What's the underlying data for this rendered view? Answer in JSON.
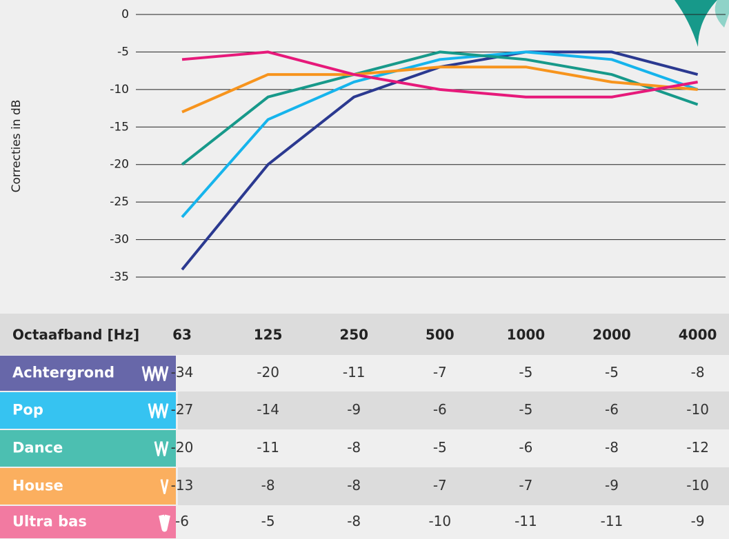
{
  "chart_data": {
    "type": "line",
    "y_label": "Correcties in dB",
    "x_label": "Octaafband [Hz]",
    "categories": [
      "63",
      "125",
      "250",
      "500",
      "1000",
      "2000",
      "4000"
    ],
    "ylim": [
      -35,
      0
    ],
    "yticks": [
      0,
      -5,
      -10,
      -15,
      -20,
      -25,
      -30,
      -35
    ],
    "grid": true,
    "series": [
      {
        "name": "Achtergrond",
        "color": "#2b3990",
        "label_color": "#6767a9",
        "values": [
          -34,
          -20,
          -11,
          -7,
          -5,
          -5,
          -8
        ]
      },
      {
        "name": "Pop",
        "color": "#16b4ec",
        "label_color": "#36c3f1",
        "values": [
          -27,
          -14,
          -9,
          -6,
          -5,
          -6,
          -10
        ]
      },
      {
        "name": "Dance",
        "color": "#17998a",
        "label_color": "#4cbfb1",
        "values": [
          -20,
          -11,
          -8,
          -5,
          -6,
          -8,
          -12
        ]
      },
      {
        "name": "House",
        "color": "#f7941d",
        "label_color": "#fbaf5f",
        "values": [
          -13,
          -8,
          -8,
          -7,
          -7,
          -9,
          -10
        ]
      },
      {
        "name": "Ultra bas",
        "color": "#e6197a",
        "label_color": "#f27aa1",
        "values": [
          -6,
          -5,
          -8,
          -10,
          -11,
          -11,
          -9
        ]
      }
    ]
  }
}
